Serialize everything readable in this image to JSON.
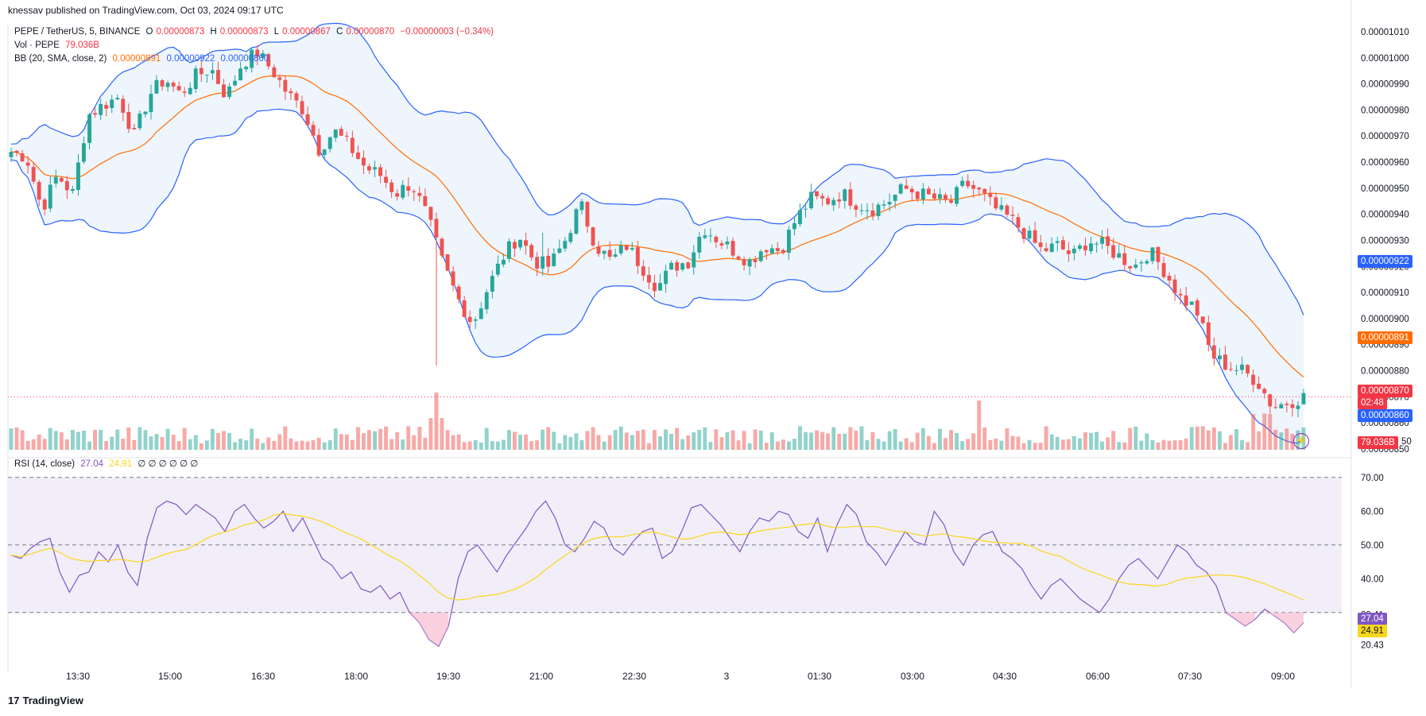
{
  "header": {
    "published": "knessav published on TradingView.com, Oct 03, 2024 09:17 UTC",
    "symbol": "PEPE / TetherUS, 5, BINANCE",
    "o_label": "O",
    "o": "0.00000873",
    "h_label": "H",
    "h": "0.00000873",
    "l_label": "L",
    "l": "0.00000867",
    "c_label": "C",
    "c": "0.00000870",
    "change": "−0.00000003 (−0.34%)",
    "vol_label": "Vol · PEPE",
    "vol": "79.036B",
    "bb_label": "BB (20, SMA, close, 2)",
    "bb_basis": "0.00000891",
    "bb_upper": "0.00000922",
    "bb_lower": "0.00000860",
    "rsi_label": "RSI (14, close)",
    "rsi": "27.04",
    "rsi_ma": "24.91",
    "rsi_extra": "∅ ∅ ∅ ∅ ∅ ∅"
  },
  "footer": {
    "brand": "TradingView"
  },
  "colors": {
    "up": "#26a69a",
    "down": "#ef5350",
    "upper_lower": "#2962ff",
    "basis": "#ff6d00",
    "rsi": "#7e57c2",
    "rsi_ma": "#f9d71c",
    "band_fill": "#e3eefc",
    "rsi_zone": "#ede7f6"
  },
  "icon": "flash-icon",
  "chart_data": [
    {
      "type": "candlestick",
      "y_ticks": [
        "0.00001010",
        "0.00001000",
        "0.00000990",
        "0.00000980",
        "0.00000970",
        "0.00000960",
        "0.00000950",
        "0.00000940",
        "0.00000930",
        "0.00000920",
        "0.00000910",
        "0.00000900",
        "0.00000890",
        "0.00000880",
        "0.00000870",
        "0.00000860",
        "0.00000850"
      ],
      "ylim": [
        8.5e-06,
        1.01e-05
      ],
      "x_ticks": [
        "13:30",
        "15:00",
        "16:30",
        "18:00",
        "19:30",
        "21:00",
        "22:30",
        "3",
        "01:30",
        "03:00",
        "04:30",
        "06:00",
        "07:30",
        "09:00"
      ],
      "price_labels": {
        "upper": "0.00000922",
        "basis": "0.00000891",
        "last": "0.00000870",
        "countdown": "02:48",
        "lower": "0.00000860",
        "volume": "79.036B",
        "partial_tick": "50"
      },
      "close_anchors": [
        9.64,
        9.62,
        9.42,
        9.55,
        9.48,
        9.78,
        9.82,
        9.85,
        9.7,
        9.86,
        9.92,
        9.86,
        9.93,
        9.96,
        9.85,
        9.98,
        10.02,
        9.95,
        9.86,
        9.8,
        9.65,
        9.72,
        9.66,
        9.58,
        9.55,
        9.48,
        9.52,
        9.4,
        9.22,
        9.08,
        8.98,
        9.12,
        9.24,
        9.32,
        9.22,
        9.2,
        9.3,
        9.44,
        9.28,
        9.22,
        9.28,
        9.2,
        9.12,
        9.2,
        9.22,
        9.35,
        9.3,
        9.26,
        9.22,
        9.28,
        9.26,
        9.38,
        9.46,
        9.45,
        9.48,
        9.44,
        9.42,
        9.45,
        9.5,
        9.48,
        9.46,
        9.44,
        9.52,
        9.48,
        9.42,
        9.38,
        9.32,
        9.26,
        9.28,
        9.24,
        9.3,
        9.28,
        9.24,
        9.2,
        9.26,
        9.18,
        9.08,
        9.04,
        8.86,
        8.82,
        8.8,
        8.76,
        8.66,
        8.68,
        8.7
      ],
      "volume_scale": "relative",
      "rsi": {
        "y_ticks": [
          "70.00",
          "60.00",
          "50.00",
          "40.00",
          "29.41",
          "20.43"
        ],
        "ylim": [
          17,
          73
        ],
        "levels": [
          70,
          50,
          30
        ],
        "last": "27.04",
        "ma_last": "24.91",
        "values": [
          47,
          46,
          49,
          51,
          52,
          42,
          36,
          41,
          42,
          48,
          45,
          50,
          42,
          38,
          52,
          61,
          63,
          62,
          59,
          62,
          60,
          58,
          54,
          60,
          62,
          58,
          55,
          57,
          60,
          54,
          58,
          52,
          46,
          44,
          40,
          42,
          37,
          36,
          38,
          34,
          36,
          30,
          27,
          22,
          20,
          26,
          40,
          48,
          50,
          46,
          42,
          47,
          51,
          55,
          60,
          63,
          58,
          50,
          48,
          52,
          57,
          55,
          49,
          47,
          51,
          54,
          55,
          46,
          48,
          54,
          61,
          62,
          59,
          56,
          52,
          48,
          54,
          58,
          57,
          60,
          59,
          54,
          52,
          58,
          48,
          56,
          62,
          59,
          51,
          48,
          44,
          49,
          54,
          51,
          50,
          60,
          56,
          48,
          44,
          50,
          53,
          54,
          48,
          46,
          43,
          38,
          34,
          38,
          40,
          37,
          34,
          32,
          30,
          34,
          40,
          44,
          46,
          43,
          40,
          45,
          50,
          48,
          44,
          42,
          38,
          30,
          28,
          26,
          28,
          31,
          29,
          27,
          24,
          27
        ]
      }
    }
  ]
}
